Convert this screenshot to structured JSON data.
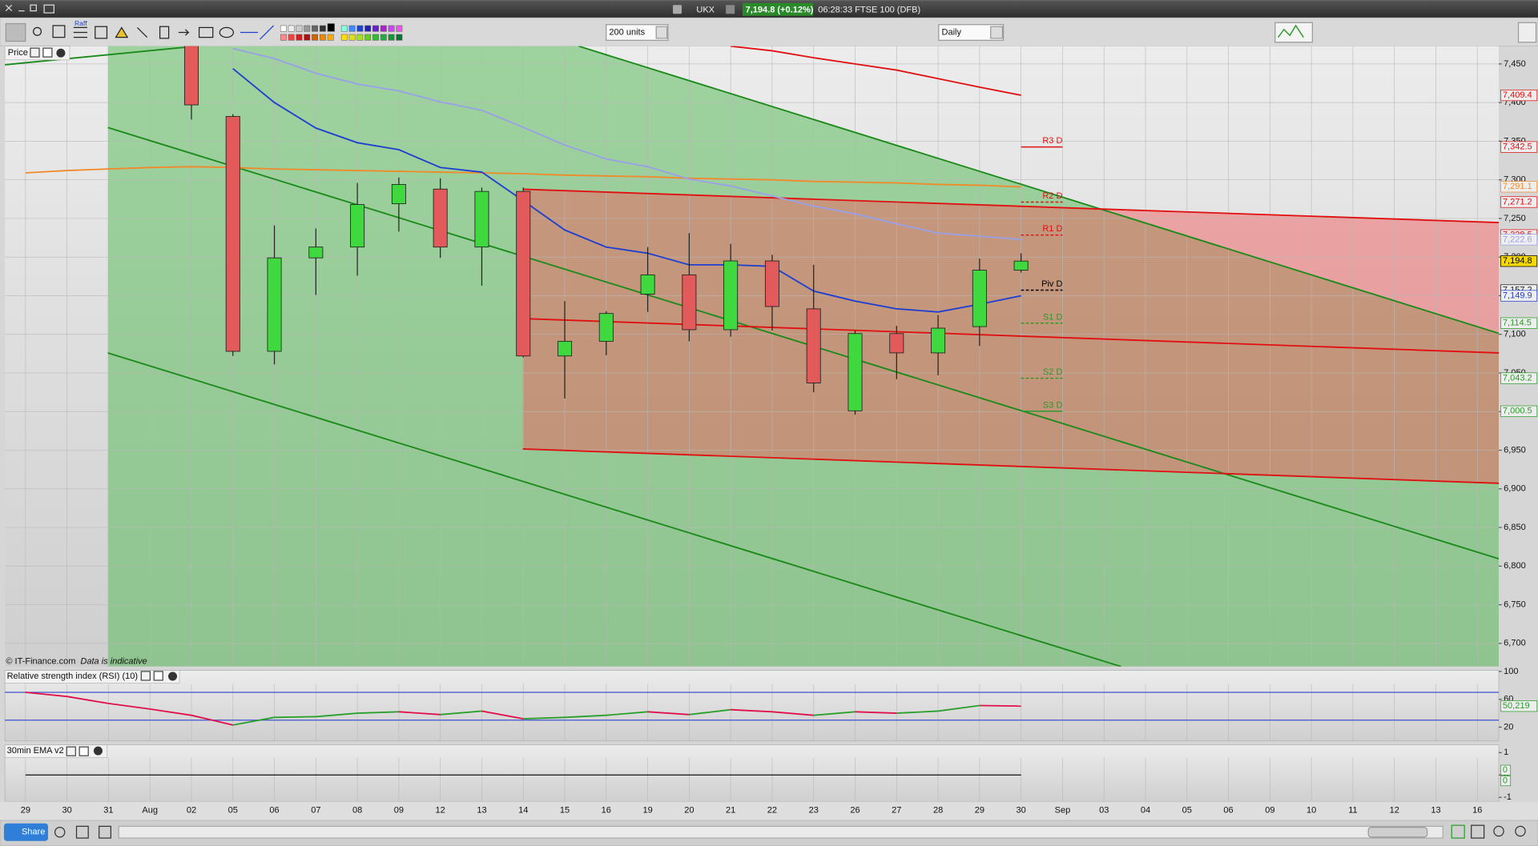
{
  "window": {
    "symbol": "UKX",
    "quote": "7,194.8 (+0.12%)",
    "status": "06:28:33 FTSE 100 (DFB)"
  },
  "toolbar": {
    "raff": "Raff",
    "units": "200 units",
    "interval": "Daily"
  },
  "footer": {
    "copyright": "© IT-Finance.com",
    "note": "Data is indicative",
    "share": "Share"
  },
  "chart_data": [
    {
      "type": "candlestick",
      "panel_label": "Price",
      "categories": [
        "29",
        "30",
        "31",
        "Aug",
        "02",
        "05",
        "06",
        "07",
        "08",
        "09",
        "12",
        "13",
        "14",
        "15",
        "16",
        "19",
        "20",
        "21",
        "22",
        "23",
        "26",
        "27",
        "28",
        "29",
        "30",
        "Sep",
        "03",
        "04",
        "05",
        "06",
        "09",
        "10",
        "11",
        "12",
        "13",
        "16"
      ],
      "open": [
        null,
        null,
        null,
        null,
        7480,
        7382,
        7078,
        7199,
        7213,
        7269,
        7288,
        7213,
        7285,
        7072,
        7091,
        7152,
        7177,
        7106,
        7195,
        7133,
        7001,
        7101,
        7076,
        7110,
        7183,
        null,
        null,
        null,
        null,
        null,
        null,
        null,
        null,
        null,
        null,
        null
      ],
      "high": [
        null,
        null,
        null,
        null,
        7500,
        7385,
        7241,
        7237,
        7296,
        7303,
        7302,
        7290,
        7290,
        7143,
        7130,
        7213,
        7231,
        7217,
        7203,
        7190,
        7105,
        7111,
        7125,
        7198,
        7205,
        null,
        null,
        null,
        null,
        null,
        null,
        null,
        null,
        null,
        null,
        null
      ],
      "low": [
        null,
        null,
        null,
        null,
        7378,
        7072,
        7061,
        7151,
        7176,
        7233,
        7199,
        7163,
        7070,
        7017,
        7073,
        7129,
        7091,
        7097,
        7105,
        7025,
        6996,
        7042,
        7047,
        7085,
        7180,
        null,
        null,
        null,
        null,
        null,
        null,
        null,
        null,
        null,
        null,
        null
      ],
      "close": [
        null,
        null,
        null,
        null,
        7397,
        7078,
        7199,
        7213,
        7268,
        7294,
        7213,
        7285,
        7072,
        7091,
        7127,
        7177,
        7106,
        7195,
        7136,
        7037,
        7101,
        7076,
        7108,
        7183,
        7194.8,
        null,
        null,
        null,
        null,
        null,
        null,
        null,
        null,
        null,
        null,
        null
      ],
      "up_color": "#3fd83f",
      "down_color": "#e25a5a",
      "series": [
        {
          "color": "#f08a2a",
          "values": [
            7309,
            7312,
            7314,
            7316,
            7317,
            7316,
            7314,
            7313,
            7312,
            7311,
            7310,
            7309,
            7308,
            7306,
            7305,
            7304,
            7302,
            7301,
            7300,
            7298,
            7297,
            7296,
            7294,
            7293,
            7291,
            null,
            null,
            null,
            null,
            null,
            null,
            null,
            null,
            null,
            null,
            null
          ]
        },
        {
          "color": "#9aa0e8",
          "values": [
            null,
            null,
            null,
            null,
            null,
            7470,
            7457,
            7438,
            7424,
            7415,
            7401,
            7390,
            7368,
            7345,
            7327,
            7317,
            7301,
            7292,
            7279,
            7266,
            7256,
            7243,
            7231,
            7227,
            7222.6,
            null,
            null,
            null,
            null,
            null,
            null,
            null,
            null,
            null,
            null,
            null
          ]
        },
        {
          "color": "#1f3fd0",
          "values": [
            null,
            null,
            null,
            null,
            null,
            7444,
            7400,
            7367,
            7348,
            7339,
            7316,
            7310,
            7273,
            7235,
            7213,
            7205,
            7190,
            7190,
            7188,
            7156,
            7143,
            7133,
            7129,
            7139,
            7149.9,
            null,
            null,
            null,
            null,
            null,
            null,
            null,
            null,
            null,
            null,
            null
          ]
        },
        {
          "color": "#e01010",
          "values": [
            null,
            null,
            null,
            null,
            null,
            null,
            null,
            null,
            null,
            null,
            null,
            null,
            null,
            null,
            null,
            null,
            null,
            7473,
            7467,
            7458,
            7450,
            7442,
            7431,
            7420,
            7409.4,
            null,
            null,
            null,
            null,
            null,
            null,
            null,
            null,
            null,
            null,
            null
          ]
        }
      ],
      "pivots": [
        {
          "label": "R3 D",
          "value": 7342.5,
          "color": "#e01010",
          "dashed": false
        },
        {
          "label": "R2 D",
          "value": 7271.2,
          "color": "#e01010",
          "dashed": true
        },
        {
          "label": "R1 D",
          "value": 7228.5,
          "color": "#e01010",
          "dashed": true
        },
        {
          "label": "Piv D",
          "value": 7157.2,
          "color": "#000000",
          "dashed": true
        },
        {
          "label": "S1 D",
          "value": 7114.5,
          "color": "#2a9a2a",
          "dashed": true
        },
        {
          "label": "S2 D",
          "value": 7043.2,
          "color": "#2a9a2a",
          "dashed": true
        },
        {
          "label": "S3 D",
          "value": 7000.5,
          "color": "#2a9a2a",
          "dashed": false
        }
      ],
      "price_flags": [
        {
          "value": 7409.4,
          "label": "7,409.4",
          "color": "#e01010"
        },
        {
          "value": 7342.5,
          "label": "7,342.5",
          "color": "#e01010"
        },
        {
          "value": 7291.1,
          "label": "7,291.1",
          "color": "#f08a2a"
        },
        {
          "value": 7271.2,
          "label": "7,271.2",
          "color": "#e01010"
        },
        {
          "value": 7228.5,
          "label": "7,228.5",
          "color": "#e01010"
        },
        {
          "value": 7222.6,
          "label": "7,222.6",
          "color": "#9aa0e8"
        },
        {
          "value": 7194.8,
          "label": "7,194.8",
          "color": "#000000",
          "fill": "#f5d800"
        },
        {
          "value": 7157.2,
          "label": "7,157.2",
          "color": "#222222"
        },
        {
          "value": 7149.9,
          "label": "7,149.9",
          "color": "#1f3fd0"
        },
        {
          "value": 7114.5,
          "label": "7,114.5",
          "color": "#2a9a2a"
        },
        {
          "value": 7043.2,
          "label": "7,043.2",
          "color": "#2a9a2a"
        },
        {
          "value": 7000.5,
          "label": "7,000.5",
          "color": "#2a9a2a"
        }
      ],
      "ylim": [
        6670,
        7473
      ],
      "yticks": [
        {
          "value": 7450,
          "label": "7,450"
        },
        {
          "value": 7400,
          "label": "7,400"
        },
        {
          "value": 7350,
          "label": "7,350"
        },
        {
          "value": 7300,
          "label": "7,300"
        },
        {
          "value": 7250,
          "label": "7,250"
        },
        {
          "value": 7200,
          "label": "7,200"
        },
        {
          "value": 7150,
          "label": "7,150"
        },
        {
          "value": 7100,
          "label": "7,100"
        },
        {
          "value": 7050,
          "label": "7,050"
        },
        {
          "value": 7000,
          "label": "7,000"
        },
        {
          "value": 6950,
          "label": "6,950"
        },
        {
          "value": 6900,
          "label": "6,900"
        },
        {
          "value": 6850,
          "label": "6,850"
        },
        {
          "value": 6800,
          "label": "6,800"
        },
        {
          "value": 6750,
          "label": "6,750"
        },
        {
          "value": 6700,
          "label": "6,700"
        }
      ],
      "grid": true
    },
    {
      "type": "line",
      "title": "Relative strength index (RSI) (10)",
      "values": [
        70,
        64,
        54,
        46,
        37,
        23,
        34,
        35,
        40,
        42,
        38,
        43,
        32,
        34,
        37,
        42,
        38,
        45,
        42,
        37,
        42,
        40,
        43,
        51,
        50.219,
        null,
        null,
        null,
        null,
        null,
        null,
        null,
        null,
        null,
        null,
        null
      ],
      "up_color": "#2aa02a",
      "down_color": "#e0104a",
      "levels": [
        70,
        30
      ],
      "level_color": "#4050d0",
      "flag": {
        "value": 50.219,
        "label": "50,219",
        "color": "#2a9a2a"
      },
      "ylim": [
        0,
        100
      ],
      "yticks": [
        20,
        60,
        100
      ]
    },
    {
      "type": "line",
      "title": "30min EMA v2",
      "values": [
        0,
        0,
        0,
        0,
        0,
        0,
        0,
        0,
        0,
        0,
        0,
        0,
        0,
        0,
        0,
        0,
        0,
        0,
        0,
        0,
        0,
        0,
        0,
        0,
        0,
        null,
        null,
        null,
        null,
        null,
        null,
        null,
        null,
        null,
        null,
        null
      ],
      "color": "#111111",
      "flags": [
        0,
        0
      ],
      "flag_color": "#2a9a2a",
      "ylim": [
        -1.2,
        1.3
      ],
      "yticks": [
        1,
        0,
        -1
      ]
    }
  ]
}
